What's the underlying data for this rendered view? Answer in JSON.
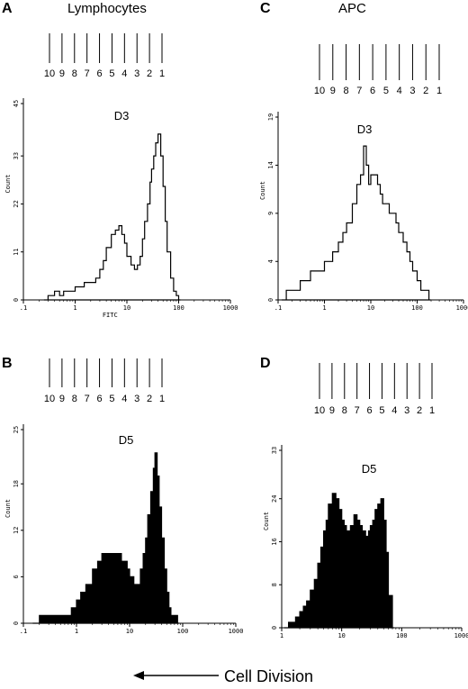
{
  "figure": {
    "bottom_label": "Cell Division",
    "columns": [
      {
        "title": "Lymphocytes"
      },
      {
        "title": "APC"
      }
    ]
  },
  "chart_data": [
    {
      "panel": "A",
      "type": "histogram",
      "title": "D3",
      "xlabel": "FITC",
      "ylabel": "Count",
      "x_scale": "log",
      "xlim": [
        0.1,
        1000
      ],
      "x_ticks": [
        ".1",
        "1",
        "10",
        "100",
        "1000"
      ],
      "ylim": [
        0,
        45
      ],
      "y_ticks": [
        "0",
        "11",
        "22",
        "33",
        "45"
      ],
      "filled": false,
      "division_labels": [
        "10",
        "9",
        "8",
        "7",
        "6",
        "5",
        "4",
        "3",
        "2",
        "1"
      ],
      "x": [
        0.25,
        0.3,
        0.35,
        0.4,
        0.5,
        0.6,
        0.7,
        0.8,
        1,
        1.2,
        1.5,
        1.8,
        2,
        2.5,
        3,
        3.5,
        4,
        5,
        6,
        7,
        8,
        9,
        10,
        12,
        14,
        16,
        18,
        20,
        22,
        25,
        28,
        30,
        33,
        36,
        40,
        45,
        50,
        55,
        60,
        70,
        80,
        90,
        100
      ],
      "y": [
        0,
        1,
        1,
        2,
        1,
        2,
        2,
        2,
        3,
        3,
        4,
        4,
        4,
        5,
        7,
        9,
        12,
        15,
        16,
        17,
        15,
        13,
        10,
        8,
        7,
        8,
        10,
        14,
        18,
        22,
        27,
        30,
        33,
        36,
        38,
        33,
        26,
        18,
        11,
        5,
        2,
        1,
        0
      ]
    },
    {
      "panel": "B",
      "type": "histogram",
      "title": "D5",
      "xlabel": "",
      "ylabel": "Count",
      "x_scale": "log",
      "xlim": [
        0.1,
        1000
      ],
      "x_ticks": [
        ".1",
        "1",
        "10",
        "100",
        "1000"
      ],
      "ylim": [
        0,
        25
      ],
      "y_ticks": [
        "0",
        "6",
        "12",
        "18",
        "25"
      ],
      "filled": true,
      "division_labels": [
        "10",
        "9",
        "8",
        "7",
        "6",
        "5",
        "4",
        "3",
        "2",
        "1"
      ],
      "x": [
        0.15,
        0.2,
        0.3,
        0.4,
        0.5,
        0.6,
        0.8,
        1,
        1.2,
        1.5,
        2,
        2.5,
        3,
        3.5,
        4,
        5,
        6,
        7,
        8,
        9,
        10,
        12,
        14,
        16,
        18,
        20,
        22,
        25,
        28,
        30,
        33,
        36,
        40,
        45,
        50,
        55,
        60,
        70,
        80
      ],
      "y": [
        0,
        1,
        1,
        1,
        1,
        1,
        2,
        3,
        4,
        5,
        7,
        8,
        9,
        9,
        9,
        9,
        9,
        8,
        8,
        7,
        6,
        5,
        5,
        7,
        9,
        11,
        14,
        17,
        20,
        22,
        19,
        15,
        11,
        7,
        4,
        2,
        1,
        1,
        0
      ]
    },
    {
      "panel": "C",
      "type": "histogram",
      "title": "D3",
      "xlabel": "",
      "ylabel": "Count",
      "x_scale": "log",
      "xlim": [
        0.1,
        1000
      ],
      "x_ticks": [
        ".1",
        "1",
        "10",
        "100",
        "1000"
      ],
      "ylim": [
        0,
        19
      ],
      "y_ticks": [
        "0",
        "4",
        "9",
        "14",
        "19"
      ],
      "filled": false,
      "division_labels": [
        "10",
        "9",
        "8",
        "7",
        "6",
        "5",
        "4",
        "3",
        "2",
        "1"
      ],
      "x": [
        0.12,
        0.15,
        0.2,
        0.25,
        0.3,
        0.4,
        0.5,
        0.6,
        0.8,
        1,
        1.2,
        1.5,
        2,
        2.5,
        3,
        4,
        5,
        6,
        7,
        8,
        9,
        10,
        12,
        14,
        16,
        18,
        20,
        25,
        30,
        35,
        40,
        50,
        60,
        70,
        80,
        100,
        120,
        150,
        180
      ],
      "y": [
        0,
        1,
        1,
        1,
        2,
        2,
        3,
        3,
        3,
        4,
        4,
        5,
        6,
        7,
        8,
        10,
        12,
        13,
        16,
        14,
        12,
        13,
        13,
        12,
        11,
        10,
        10,
        9,
        9,
        8,
        7,
        6,
        5,
        4,
        3,
        2,
        1,
        1,
        0
      ]
    },
    {
      "panel": "D",
      "type": "histogram",
      "title": "D5",
      "xlabel": "",
      "ylabel": "Count",
      "x_scale": "log",
      "xlim": [
        1,
        1000
      ],
      "x_ticks": [
        "1",
        "10",
        "100",
        "1000"
      ],
      "ylim": [
        0,
        33
      ],
      "y_ticks": [
        "0",
        "8",
        "16",
        "24",
        "33"
      ],
      "filled": true,
      "division_labels": [
        "10",
        "9",
        "8",
        "7",
        "6",
        "5",
        "4",
        "3",
        "2",
        "1"
      ],
      "x": [
        1.1,
        1.3,
        1.5,
        1.7,
        2,
        2.3,
        2.6,
        3,
        3.5,
        4,
        4.5,
        5,
        5.5,
        6,
        7,
        8,
        9,
        10,
        11,
        12,
        14,
        16,
        18,
        20,
        22,
        25,
        28,
        30,
        33,
        36,
        40,
        45,
        50,
        55,
        60,
        70
      ],
      "y": [
        0,
        1,
        1,
        2,
        3,
        4,
        5,
        7,
        9,
        12,
        15,
        18,
        20,
        23,
        25,
        24,
        22,
        20,
        19,
        18,
        19,
        21,
        20,
        19,
        18,
        17,
        18,
        19,
        20,
        22,
        23,
        24,
        20,
        14,
        6,
        0
      ]
    }
  ]
}
